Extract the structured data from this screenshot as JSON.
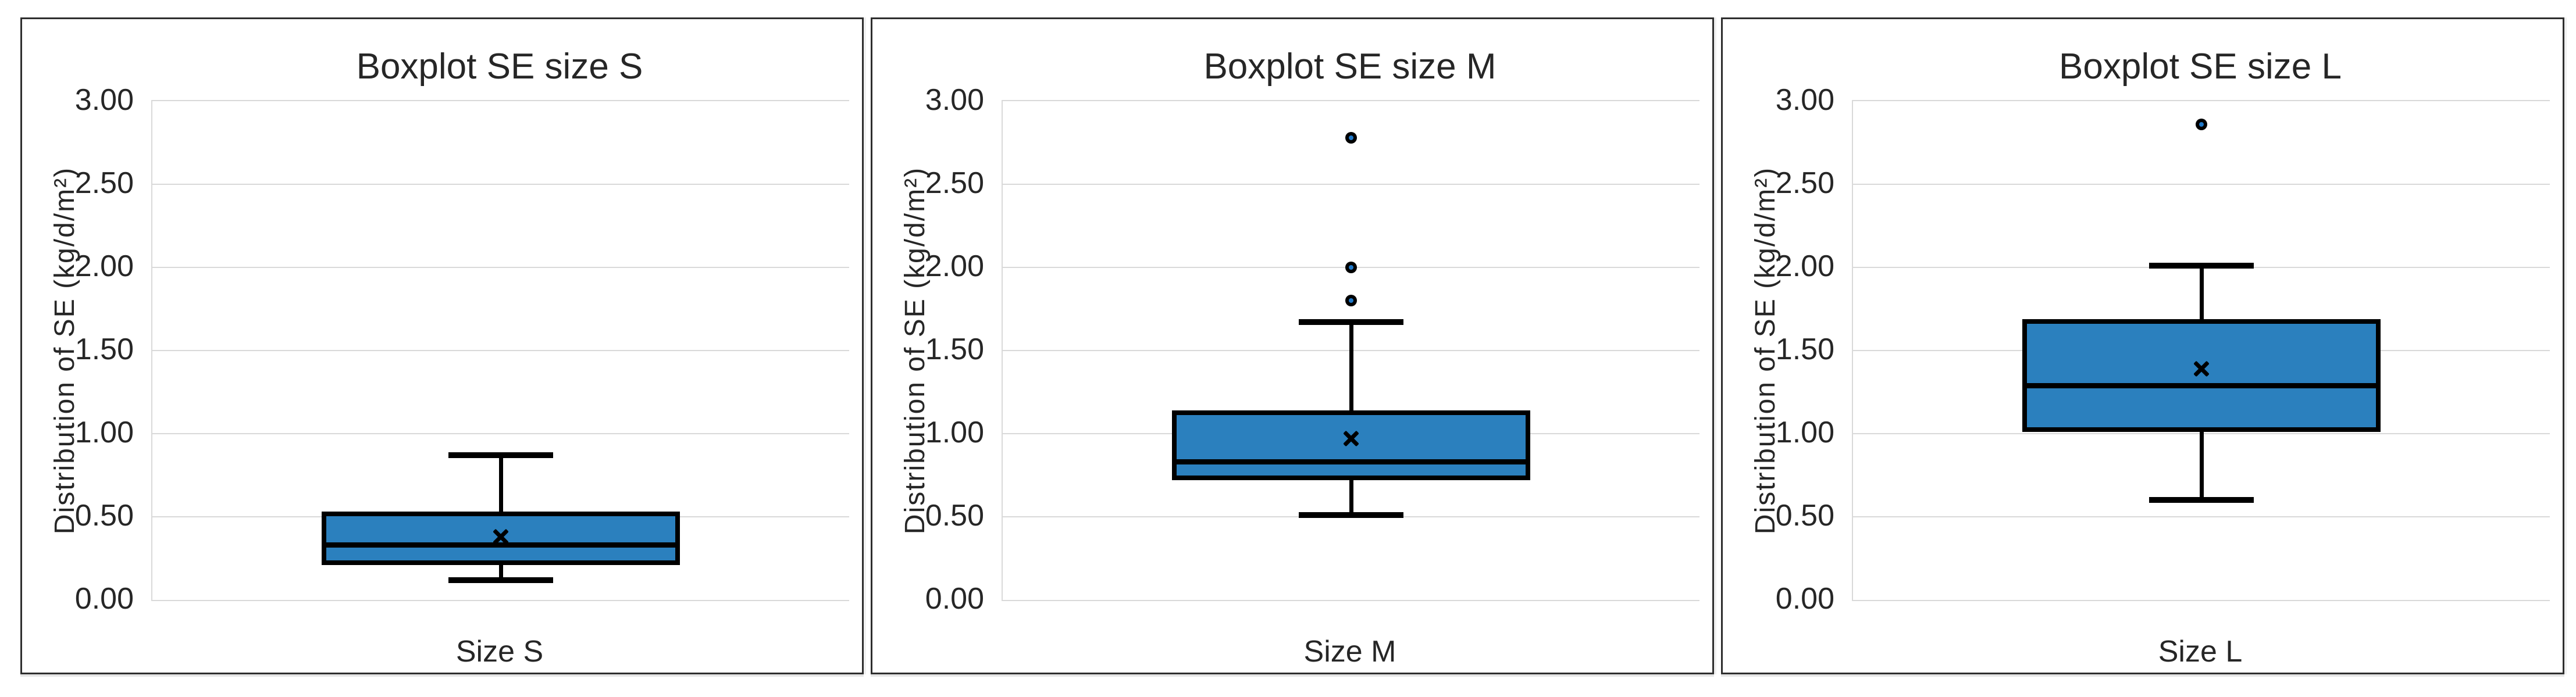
{
  "page": {
    "background": "#ffffff"
  },
  "shared": {
    "ylabel": "Distribution of SE (kg/d/m²)",
    "ytick_labels": [
      "3.00",
      "2.50",
      "2.00",
      "1.50",
      "1.00",
      "0.50",
      "0.00"
    ],
    "ytick_values": [
      3.0,
      2.5,
      2.0,
      1.5,
      1.0,
      0.5,
      0.0
    ],
    "ylim": [
      0,
      3
    ],
    "grid": true,
    "colors": {
      "box_fill": "#2b80be",
      "line_color": "#000000",
      "gridline": "#d9d9d9",
      "frame": "#2e2e2e",
      "text": "#262626",
      "outlier_core": "#1f78c8"
    }
  },
  "chart_data": [
    {
      "type": "boxplot",
      "title": "Boxplot SE size S",
      "category": "Size S",
      "ylabel": "Distribution of SE (kg/d/m²)",
      "ylim": [
        0,
        3
      ],
      "whisker_low": 0.12,
      "q1": 0.21,
      "median": 0.33,
      "q3": 0.53,
      "whisker_high": 0.87,
      "mean": 0.38,
      "outliers": []
    },
    {
      "type": "boxplot",
      "title": "Boxplot SE size M",
      "category": "Size M",
      "ylabel": "Distribution of SE (kg/d/m²)",
      "ylim": [
        0,
        3
      ],
      "whisker_low": 0.51,
      "q1": 0.72,
      "median": 0.83,
      "q3": 1.14,
      "whisker_high": 1.67,
      "mean": 0.97,
      "outliers": [
        1.8,
        2.0,
        2.78
      ]
    },
    {
      "type": "boxplot",
      "title": "Boxplot SE size L",
      "category": "Size L",
      "ylabel": "Distribution of SE (kg/d/m²)",
      "ylim": [
        0,
        3
      ],
      "whisker_low": 0.6,
      "q1": 1.01,
      "median": 1.29,
      "q3": 1.69,
      "whisker_high": 2.01,
      "mean": 1.39,
      "outliers": [
        2.86
      ]
    }
  ]
}
